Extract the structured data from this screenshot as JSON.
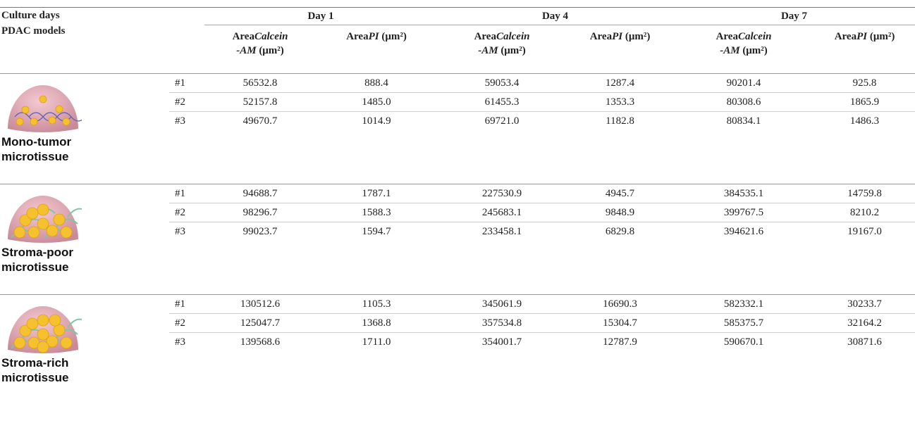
{
  "header": {
    "corner": [
      "Culture days",
      "PDAC models"
    ],
    "days": [
      "Day 1",
      "Day 4",
      "Day 7"
    ],
    "columns": [
      {
        "area": "Area",
        "marker": [
          "Calcein",
          "-AM"
        ],
        "unit": "(μm²)"
      },
      {
        "area": "Area",
        "marker": [
          "PI"
        ],
        "unit": "(μm²)"
      },
      {
        "area": "Area",
        "marker": [
          "Calcein",
          "-AM"
        ],
        "unit": "(μm²)"
      },
      {
        "area": "Area",
        "marker": [
          "PI"
        ],
        "unit": "(μm²)"
      },
      {
        "area": "Area",
        "marker": [
          "Calcein",
          "-AM"
        ],
        "unit": "(μm²)"
      },
      {
        "area": "Area",
        "marker": [
          "PI"
        ],
        "unit": "(μm²)"
      }
    ]
  },
  "groups": [
    {
      "name": [
        "Mono-tumor",
        "microtissue"
      ],
      "rows": [
        {
          "id": "#1",
          "values": [
            "56532.8",
            "888.4",
            "59053.4",
            "1287.4",
            "90201.4",
            "925.8"
          ]
        },
        {
          "id": "#2",
          "values": [
            "52157.8",
            "1485.0",
            "61455.3",
            "1353.3",
            "80308.6",
            "1865.9"
          ]
        },
        {
          "id": "#3",
          "values": [
            "49670.7",
            "1014.9",
            "69721.0",
            "1182.8",
            "80834.1",
            "1486.3"
          ]
        }
      ]
    },
    {
      "name": [
        "Stroma-poor",
        "microtissue"
      ],
      "rows": [
        {
          "id": "#1",
          "values": [
            "94688.7",
            "1787.1",
            "227530.9",
            "4945.7",
            "384535.1",
            "14759.8"
          ]
        },
        {
          "id": "#2",
          "values": [
            "98296.7",
            "1588.3",
            "245683.1",
            "9848.9",
            "399767.5",
            "8210.2"
          ]
        },
        {
          "id": "#3",
          "values": [
            "99023.7",
            "1594.7",
            "233458.1",
            "6829.8",
            "394621.6",
            "19167.0"
          ]
        }
      ]
    },
    {
      "name": [
        "Stroma-rich",
        "microtissue"
      ],
      "rows": [
        {
          "id": "#1",
          "values": [
            "130512.6",
            "1105.3",
            "345061.9",
            "16690.3",
            "582332.1",
            "30233.7"
          ]
        },
        {
          "id": "#2",
          "values": [
            "125047.7",
            "1368.8",
            "357534.8",
            "15304.7",
            "585375.7",
            "32164.2"
          ]
        },
        {
          "id": "#3",
          "values": [
            "139568.6",
            "1711.0",
            "354001.7",
            "12787.9",
            "590670.1",
            "30871.6"
          ]
        }
      ]
    }
  ]
}
